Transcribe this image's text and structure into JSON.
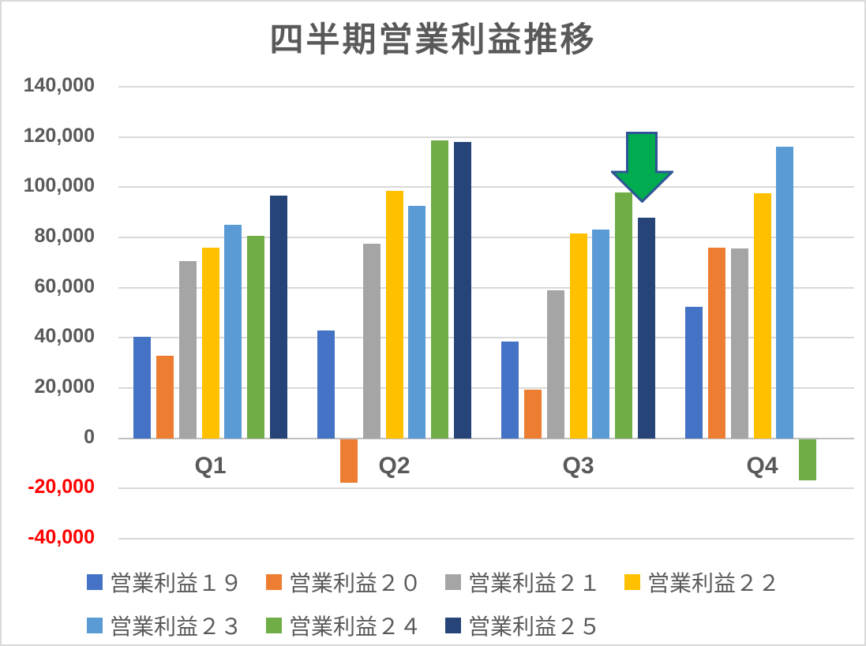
{
  "title": "四半期営業利益推移",
  "colors": {
    "text": "#595959",
    "negative_tick": "#FF0000",
    "gridline": "#D9D9D9",
    "zero_axis": "#BFBFBF",
    "background": "#FFFFFF",
    "frame_border": "#D9D9D9"
  },
  "chart_data": {
    "type": "bar",
    "title": "四半期営業利益推移",
    "categories": [
      "Q1",
      "Q2",
      "Q3",
      "Q4"
    ],
    "series": [
      {
        "key": "eigyo-rieki-19",
        "name": "営業利益１９",
        "color": "#4472C4",
        "values": [
          40500,
          43000,
          38500,
          52500
        ]
      },
      {
        "key": "eigyo-rieki-20",
        "name": "営業利益２０",
        "color": "#ED7D31",
        "values": [
          33000,
          -17500,
          19500,
          76000
        ]
      },
      {
        "key": "eigyo-rieki-21",
        "name": "営業利益２１",
        "color": "#A5A5A5",
        "values": [
          70500,
          77500,
          59000,
          75500
        ]
      },
      {
        "key": "eigyo-rieki-22",
        "name": "営業利益２２",
        "color": "#FFC000",
        "values": [
          76000,
          98500,
          81500,
          97500
        ]
      },
      {
        "key": "eigyo-rieki-23",
        "name": "営業利益２３",
        "color": "#5B9BD5",
        "values": [
          85000,
          92500,
          83000,
          116000
        ]
      },
      {
        "key": "eigyo-rieki-24",
        "name": "営業利益２４",
        "color": "#70AD47",
        "values": [
          80500,
          118500,
          98000,
          -16500
        ]
      },
      {
        "key": "eigyo-rieki-25",
        "name": "営業利益２５",
        "color": "#264478",
        "values": [
          96500,
          118000,
          88000,
          null
        ]
      }
    ],
    "ylim": [
      -40000,
      140000
    ],
    "ytick_values": [
      140000,
      120000,
      100000,
      80000,
      60000,
      40000,
      20000,
      0,
      -20000,
      -40000
    ],
    "ytick_labels": [
      "140,000",
      "120,000",
      "100,000",
      "80,000",
      "60,000",
      "40,000",
      "20,000",
      "0",
      "-20,000",
      "-40,000"
    ],
    "grid": true,
    "legend_position": "bottom",
    "legend_rows": [
      [
        0,
        1,
        2,
        3
      ],
      [
        4,
        5,
        6
      ]
    ],
    "annotation": {
      "shape": "down-arrow",
      "fill": "#00AC4F",
      "border": "#2F5597",
      "points_at": {
        "category": "Q3",
        "series": "営業利益２５"
      }
    }
  }
}
